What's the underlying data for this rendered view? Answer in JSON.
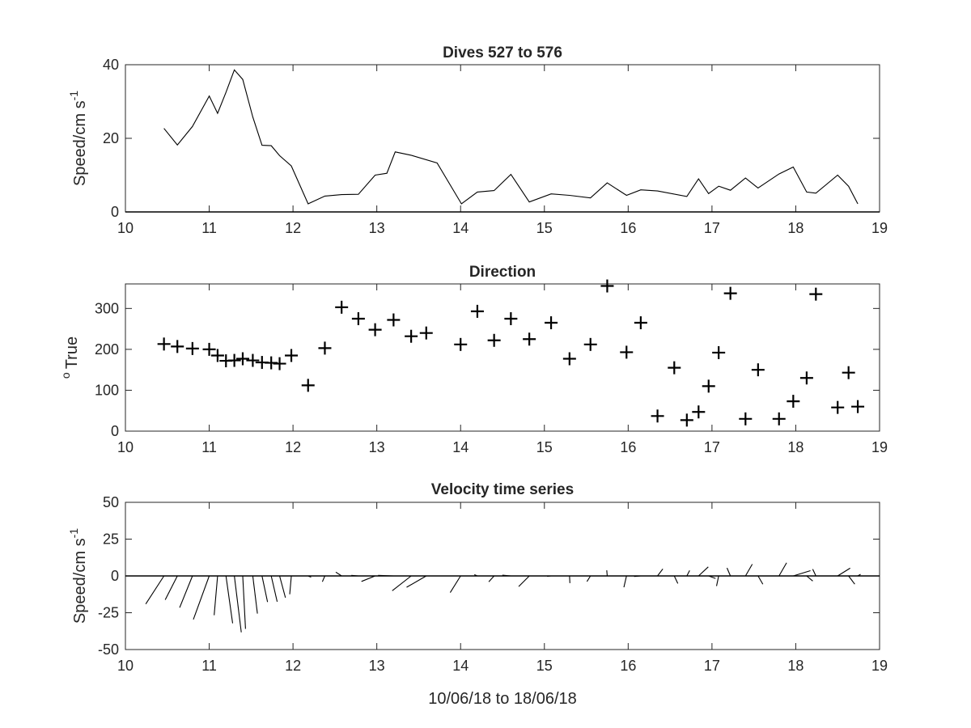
{
  "chart_data": [
    {
      "type": "line",
      "title": "Dives 527 to 576",
      "ylabel": "Speed/cm s",
      "ylabel_sup": "-1",
      "xlim": [
        10,
        19
      ],
      "ylim": [
        0,
        40
      ],
      "xticks": [
        10,
        11,
        12,
        13,
        14,
        15,
        16,
        17,
        18,
        19
      ],
      "yticks": [
        0,
        20,
        40
      ],
      "x": [
        10.46,
        10.62,
        10.8,
        11.0,
        11.1,
        11.2,
        11.3,
        11.4,
        11.52,
        11.63,
        11.74,
        11.84,
        11.98,
        12.18,
        12.38,
        12.58,
        12.78,
        12.98,
        13.12,
        13.22,
        13.41,
        13.72,
        14.01,
        14.2,
        14.4,
        14.6,
        14.82,
        15.08,
        15.3,
        15.55,
        15.75,
        15.98,
        16.15,
        16.35,
        16.7,
        16.84,
        16.96,
        17.08,
        17.22,
        17.4,
        17.55,
        17.8,
        17.97,
        18.13,
        18.24,
        18.5,
        18.63,
        18.74
      ],
      "y": [
        22.7,
        18.2,
        23.2,
        31.5,
        26.8,
        32.5,
        38.6,
        36.0,
        25.8,
        18.1,
        18.0,
        15.3,
        12.5,
        2.2,
        4.3,
        4.7,
        4.8,
        10.0,
        10.5,
        16.3,
        15.4,
        13.3,
        2.2,
        5.4,
        5.8,
        10.2,
        2.7,
        4.9,
        4.5,
        3.8,
        7.9,
        4.5,
        6.0,
        5.7,
        4.2,
        9.0,
        5.0,
        7.0,
        5.9,
        9.2,
        6.5,
        10.3,
        12.2,
        5.4,
        5.1,
        10.0,
        7.0,
        2.2
      ]
    },
    {
      "type": "scatter",
      "title": "Direction",
      "ylabel": "True",
      "ylabel_sup": "o",
      "marker": "+",
      "xlim": [
        10,
        19
      ],
      "ylim": [
        0,
        360
      ],
      "xticks": [
        10,
        11,
        12,
        13,
        14,
        15,
        16,
        17,
        18,
        19
      ],
      "yticks": [
        0,
        100,
        200,
        300
      ],
      "x": [
        10.46,
        10.62,
        10.8,
        11.0,
        11.1,
        11.2,
        11.3,
        11.4,
        11.52,
        11.63,
        11.74,
        11.84,
        11.98,
        12.18,
        12.38,
        12.58,
        12.78,
        12.98,
        13.2,
        13.41,
        13.59,
        14.0,
        14.2,
        14.4,
        14.6,
        14.82,
        15.08,
        15.3,
        15.55,
        15.75,
        15.98,
        16.15,
        16.35,
        16.55,
        16.7,
        16.84,
        16.96,
        17.08,
        17.22,
        17.4,
        17.55,
        17.8,
        17.97,
        18.13,
        18.24,
        18.5,
        18.63,
        18.74
      ],
      "y": [
        213,
        207,
        202,
        200,
        185,
        172,
        173,
        177,
        173,
        168,
        167,
        165,
        185,
        112,
        203,
        303,
        275,
        248,
        272,
        232,
        240,
        212,
        293,
        222,
        275,
        225,
        265,
        177,
        212,
        355,
        193,
        265,
        37,
        155,
        27,
        47,
        110,
        192,
        337,
        30,
        150,
        30,
        73,
        130,
        335,
        58,
        143,
        60
      ]
    },
    {
      "type": "line",
      "variant": "stick-plot",
      "title": "Velocity time series",
      "ylabel": "Speed/cm s",
      "ylabel_sup": "-1",
      "xlabel": "10/06/18 to 18/06/18",
      "xlim": [
        10,
        19
      ],
      "ylim": [
        -50,
        50
      ],
      "xticks": [
        10,
        11,
        12,
        13,
        14,
        15,
        16,
        17,
        18,
        19
      ],
      "yticks": [
        -50,
        -25,
        0,
        25,
        50
      ],
      "x": [
        10.46,
        10.62,
        10.8,
        11.0,
        11.1,
        11.2,
        11.3,
        11.4,
        11.52,
        11.63,
        11.74,
        11.84,
        11.98,
        12.18,
        12.38,
        12.58,
        12.78,
        12.98,
        13.2,
        13.41,
        13.59,
        14.0,
        14.2,
        14.4,
        14.6,
        14.82,
        15.08,
        15.3,
        15.55,
        15.75,
        15.98,
        16.15,
        16.35,
        16.55,
        16.7,
        16.84,
        16.96,
        17.08,
        17.22,
        17.4,
        17.55,
        17.8,
        17.97,
        18.13,
        18.24,
        18.5,
        18.63,
        18.74
      ],
      "speed": [
        22.7,
        18.2,
        23.2,
        31.5,
        26.8,
        32.5,
        38.6,
        36.0,
        25.8,
        18.1,
        18.0,
        15.3,
        12.5,
        2.2,
        4.3,
        4.7,
        4.8,
        10.0,
        10.5,
        16.3,
        15.4,
        13.3,
        2.2,
        5.4,
        5.8,
        10.2,
        2.7,
        4.9,
        4.5,
        3.8,
        7.9,
        4.5,
        6.0,
        5.7,
        4.2,
        9.0,
        5.0,
        7.0,
        5.9,
        9.2,
        6.5,
        10.3,
        12.2,
        5.4,
        5.1,
        10.0,
        7.0,
        2.2
      ],
      "direction_deg_true": [
        213,
        207,
        202,
        200,
        185,
        172,
        173,
        177,
        173,
        168,
        167,
        165,
        185,
        112,
        203,
        303,
        275,
        248,
        272,
        232,
        240,
        212,
        293,
        222,
        275,
        225,
        265,
        177,
        212,
        355,
        193,
        265,
        37,
        155,
        27,
        47,
        110,
        192,
        337,
        30,
        150,
        30,
        73,
        130,
        335,
        58,
        143,
        60
      ]
    }
  ]
}
